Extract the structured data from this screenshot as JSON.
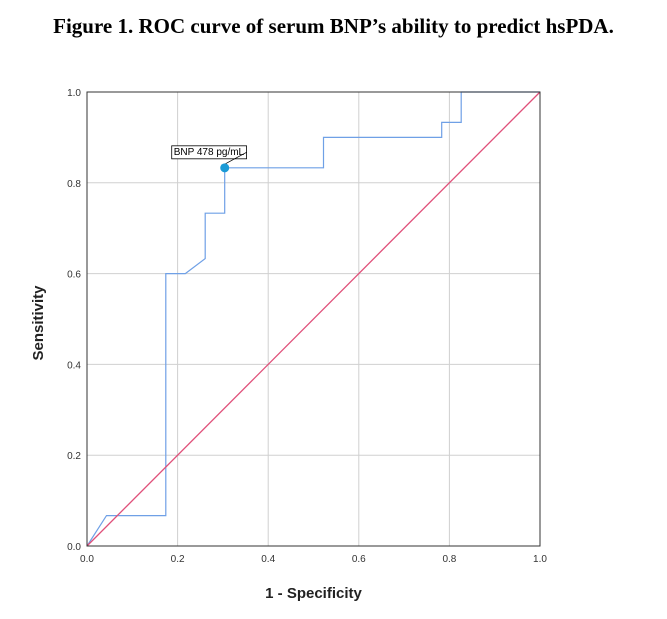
{
  "caption": "Figure 1. ROC curve of serum BNP’s ability to predict hsPDA.",
  "chart_data": {
    "type": "line",
    "title": "",
    "xlabel": "1 - Specificity",
    "ylabel": "Sensitivity",
    "xlim": [
      0,
      1
    ],
    "ylim": [
      0,
      1
    ],
    "xticks": [
      "0.0",
      "0.2",
      "0.4",
      "0.6",
      "0.8",
      "1.0"
    ],
    "yticks": [
      "0.0",
      "0.2",
      "0.4",
      "0.6",
      "0.8",
      "1.0"
    ],
    "grid": true,
    "series": [
      {
        "color": "#6fa0e6",
        "x": [
          0,
          0.043,
          0.174,
          0.174,
          0.217,
          0.261,
          0.261,
          0.304,
          0.304,
          0.522,
          0.522,
          0.783,
          0.783,
          0.826,
          0.826,
          1.0
        ],
        "y": [
          0,
          0.067,
          0.067,
          0.6,
          0.6,
          0.633,
          0.733,
          0.733,
          0.833,
          0.833,
          0.9,
          0.9,
          0.933,
          0.933,
          1.0,
          1.0
        ]
      },
      {
        "color": "#e0507a",
        "x": [
          0,
          1
        ],
        "y": [
          0,
          1
        ]
      }
    ],
    "annotation": {
      "text": "BNP 478 pg/mL",
      "x": 0.304,
      "y": 0.833,
      "color": "#1a9ad6"
    },
    "frame_color": "#333333",
    "grid_color": "#d0d0d0"
  }
}
